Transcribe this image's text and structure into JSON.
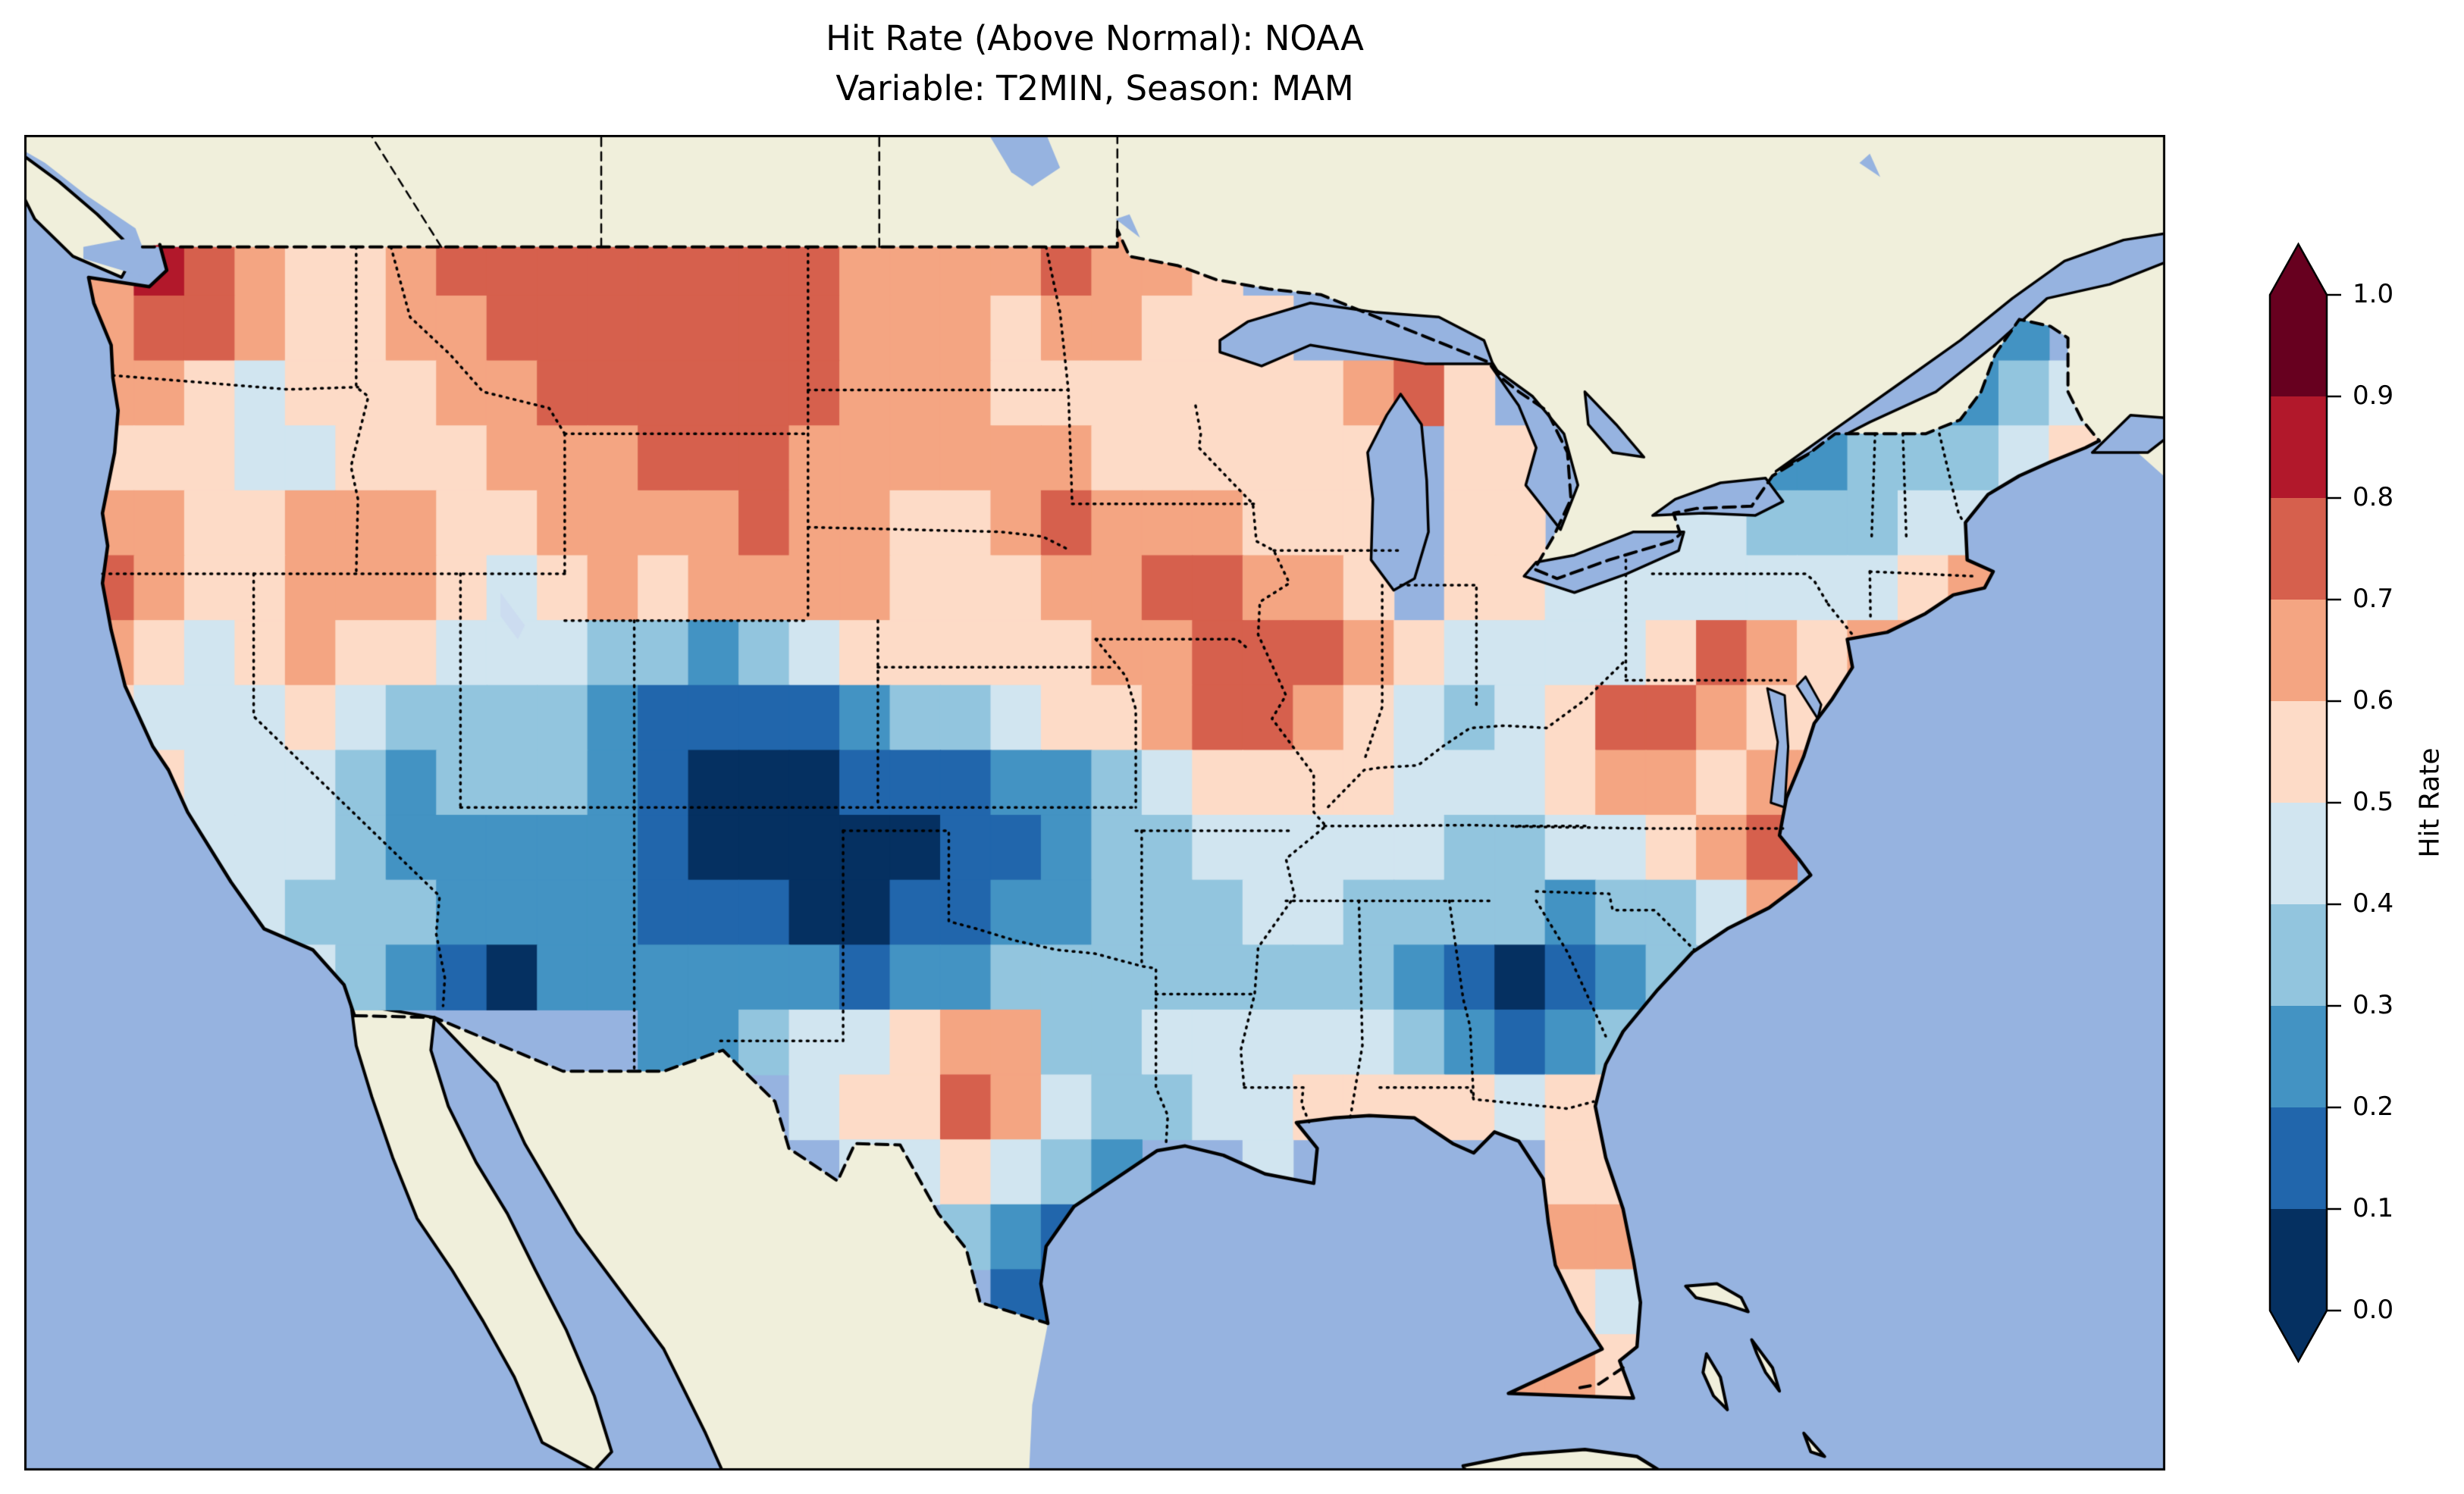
{
  "figure": {
    "title_line1": "Hit Rate (Above Normal): NOAA",
    "title_line2": "Variable: T2MIN, Season: MAM"
  },
  "colorbar": {
    "label": "Hit Rate",
    "ticks": [
      "1.0",
      "0.9",
      "0.8",
      "0.7",
      "0.6",
      "0.5",
      "0.4",
      "0.3",
      "0.2",
      "0.1",
      "0.0"
    ],
    "bin_colors_low_to_high": [
      "#053061",
      "#2166ac",
      "#4393c3",
      "#92c5de",
      "#d1e5f0",
      "#fddbc7",
      "#f4a582",
      "#d6604d",
      "#b2182b",
      "#67001f"
    ],
    "extend_under_color": "#053061",
    "extend_over_color": "#67001f",
    "outline_color": "#000000"
  },
  "map_colors": {
    "ocean": "#96b3e0",
    "land_outside_us": "#f0efdb",
    "inland_lake_pale": "#ccdcf0",
    "coastline": "#000000",
    "state_border": "#000000"
  },
  "chart_data": {
    "type": "heatmap",
    "title": "Hit Rate (Above Normal): NOAA",
    "subtitle": "Variable: T2MIN, Season: MAM",
    "source": "NOAA",
    "variable": "T2MIN",
    "season": "MAM",
    "colorbar_label": "Hit Rate",
    "legend_position": "right",
    "value_range": [
      0.0,
      1.0
    ],
    "bin_width": 0.1,
    "colorbar_ticks": [
      1.0,
      0.9,
      0.8,
      0.7,
      0.6,
      0.5,
      0.4,
      0.3,
      0.2,
      0.1,
      0.0
    ],
    "bin_colors": [
      "#053061",
      "#2166ac",
      "#4393c3",
      "#92c5de",
      "#d1e5f0",
      "#fddbc7",
      "#f4a582",
      "#d6604d",
      "#b2182b",
      "#67001f"
    ],
    "grid": {
      "description": "Hit-rate bins over CONUS on a lon/lat grid. Bin value b means hit rate in [b/10,(b+1)/10]. null = no data (outside CONUS). Row 0 is the northernmost row.",
      "lon_west": -124.9,
      "lat_north": 49.35,
      "dlon": 1.45,
      "dlat": 1.39,
      "ncols": 40,
      "nrows": 18,
      "bins": [
        [
          6,
          8,
          7,
          6,
          5,
          5,
          6,
          7,
          7,
          7,
          7,
          7,
          7,
          7,
          7,
          6,
          6,
          6,
          6,
          7,
          6,
          6,
          5,
          null,
          null,
          null,
          null,
          null,
          null,
          null,
          null,
          null,
          null,
          null,
          null,
          null,
          null,
          null,
          null,
          null
        ],
        [
          6,
          7,
          7,
          6,
          5,
          5,
          6,
          6,
          7,
          7,
          7,
          7,
          7,
          7,
          7,
          6,
          6,
          6,
          5,
          6,
          6,
          5,
          5,
          5,
          null,
          null,
          7,
          6,
          null,
          null,
          null,
          null,
          null,
          null,
          null,
          null,
          null,
          2,
          2,
          null
        ],
        [
          6,
          6,
          5,
          4,
          5,
          5,
          5,
          6,
          6,
          7,
          7,
          7,
          7,
          7,
          7,
          6,
          6,
          6,
          5,
          5,
          5,
          5,
          5,
          5,
          5,
          6,
          7,
          5,
          null,
          null,
          null,
          null,
          null,
          null,
          null,
          null,
          2,
          2,
          3,
          4
        ],
        [
          5,
          5,
          5,
          4,
          4,
          5,
          5,
          5,
          6,
          6,
          6,
          7,
          7,
          7,
          6,
          6,
          6,
          6,
          6,
          6,
          5,
          5,
          5,
          5,
          5,
          5,
          null,
          5,
          5,
          null,
          null,
          null,
          null,
          2,
          2,
          3,
          3,
          3,
          4,
          5
        ],
        [
          6,
          6,
          5,
          5,
          6,
          6,
          6,
          5,
          5,
          6,
          6,
          6,
          6,
          7,
          6,
          6,
          5,
          5,
          6,
          7,
          6,
          6,
          6,
          5,
          5,
          5,
          null,
          5,
          5,
          null,
          null,
          4,
          4,
          3,
          3,
          3,
          4,
          4,
          5,
          null
        ],
        [
          7,
          6,
          5,
          5,
          6,
          6,
          6,
          5,
          4,
          5,
          6,
          5,
          6,
          6,
          6,
          6,
          5,
          5,
          5,
          6,
          6,
          7,
          7,
          6,
          6,
          5,
          null,
          5,
          5,
          4,
          4,
          4,
          4,
          4,
          4,
          4,
          5,
          6,
          null,
          null
        ],
        [
          6,
          5,
          4,
          5,
          6,
          5,
          5,
          4,
          4,
          4,
          3,
          3,
          2,
          3,
          4,
          5,
          5,
          5,
          5,
          5,
          6,
          6,
          7,
          7,
          7,
          6,
          5,
          4,
          4,
          4,
          4,
          5,
          7,
          6,
          5,
          6,
          6,
          null,
          null,
          null
        ],
        [
          5,
          4,
          4,
          4,
          5,
          4,
          3,
          3,
          3,
          3,
          2,
          1,
          1,
          1,
          1,
          2,
          3,
          3,
          4,
          5,
          5,
          6,
          7,
          7,
          6,
          5,
          4,
          3,
          4,
          5,
          7,
          7,
          6,
          5,
          5,
          null,
          null,
          null,
          null,
          null
        ],
        [
          null,
          5,
          4,
          4,
          4,
          3,
          2,
          3,
          3,
          3,
          2,
          1,
          0,
          0,
          0,
          1,
          1,
          1,
          2,
          2,
          3,
          4,
          5,
          5,
          5,
          5,
          4,
          4,
          4,
          5,
          6,
          6,
          5,
          6,
          6,
          null,
          null,
          null,
          null,
          null
        ],
        [
          null,
          null,
          4,
          4,
          4,
          3,
          2,
          2,
          2,
          2,
          2,
          1,
          0,
          0,
          0,
          0,
          0,
          1,
          1,
          2,
          3,
          3,
          4,
          4,
          4,
          4,
          4,
          3,
          3,
          4,
          4,
          5,
          6,
          7,
          null,
          null,
          null,
          null,
          null,
          null
        ],
        [
          null,
          null,
          4,
          4,
          3,
          3,
          3,
          2,
          2,
          2,
          2,
          1,
          1,
          1,
          0,
          0,
          1,
          1,
          2,
          2,
          3,
          3,
          3,
          4,
          4,
          3,
          3,
          3,
          3,
          2,
          3,
          3,
          4,
          6,
          null,
          null,
          null,
          null,
          null,
          null
        ],
        [
          null,
          null,
          null,
          null,
          4,
          3,
          2,
          1,
          0,
          2,
          2,
          2,
          2,
          2,
          2,
          1,
          2,
          2,
          3,
          3,
          3,
          3,
          3,
          3,
          3,
          3,
          2,
          1,
          0,
          1,
          2,
          3,
          null,
          null,
          null,
          null,
          null,
          null,
          null,
          null
        ],
        [
          null,
          null,
          null,
          null,
          null,
          null,
          null,
          null,
          null,
          null,
          null,
          2,
          2,
          3,
          4,
          4,
          5,
          6,
          6,
          3,
          3,
          4,
          4,
          4,
          4,
          4,
          3,
          2,
          1,
          2,
          3,
          null,
          null,
          null,
          null,
          null,
          null,
          null,
          null,
          null
        ],
        [
          null,
          null,
          null,
          null,
          null,
          null,
          null,
          null,
          null,
          null,
          null,
          null,
          null,
          null,
          4,
          5,
          5,
          7,
          6,
          4,
          3,
          3,
          4,
          4,
          5,
          5,
          5,
          5,
          4,
          5,
          5,
          null,
          null,
          null,
          null,
          null,
          null,
          null,
          null,
          null
        ],
        [
          null,
          null,
          null,
          null,
          null,
          null,
          null,
          null,
          null,
          null,
          null,
          null,
          null,
          null,
          null,
          4,
          4,
          5,
          4,
          3,
          2,
          null,
          null,
          4,
          null,
          null,
          null,
          null,
          null,
          5,
          5,
          null,
          null,
          null,
          null,
          null,
          null,
          null,
          null,
          null
        ],
        [
          null,
          null,
          null,
          null,
          null,
          null,
          null,
          null,
          null,
          null,
          null,
          null,
          null,
          null,
          null,
          null,
          null,
          3,
          2,
          1,
          null,
          null,
          null,
          null,
          null,
          null,
          null,
          null,
          null,
          6,
          6,
          null,
          null,
          null,
          null,
          null,
          null,
          null,
          null,
          null
        ],
        [
          null,
          null,
          null,
          null,
          null,
          null,
          null,
          null,
          null,
          null,
          null,
          null,
          null,
          null,
          null,
          null,
          null,
          null,
          1,
          1,
          null,
          null,
          null,
          null,
          null,
          null,
          null,
          null,
          null,
          5,
          4,
          null,
          null,
          null,
          null,
          null,
          null,
          null,
          null,
          null
        ],
        [
          null,
          null,
          null,
          null,
          null,
          null,
          null,
          null,
          null,
          null,
          null,
          null,
          null,
          null,
          null,
          null,
          null,
          null,
          null,
          null,
          null,
          null,
          null,
          null,
          null,
          null,
          null,
          null,
          6,
          6,
          5,
          null,
          null,
          null,
          null,
          null,
          null,
          null,
          null,
          null
        ]
      ]
    }
  }
}
